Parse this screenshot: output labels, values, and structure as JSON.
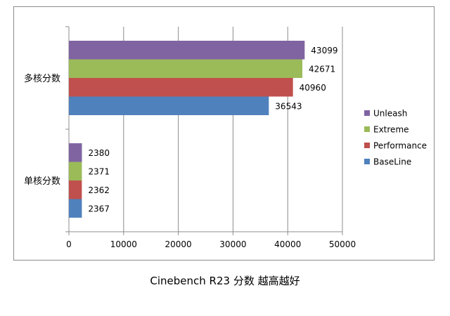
{
  "caption": "Cinebench R23  分数  越高越好",
  "chart_data": {
    "type": "bar",
    "orientation": "horizontal",
    "categories": [
      "多核分数",
      "单核分数"
    ],
    "series": [
      {
        "name": "Unleash",
        "color": "#8064A2",
        "values": [
          43099,
          2380
        ]
      },
      {
        "name": "Extreme",
        "color": "#9BBB59",
        "values": [
          42671,
          2371
        ]
      },
      {
        "name": "Performance",
        "color": "#C0504D",
        "values": [
          40960,
          2362
        ]
      },
      {
        "name": "BaseLine",
        "color": "#4F81BD",
        "values": [
          36543,
          2367
        ]
      }
    ],
    "xlim": [
      0,
      50000
    ],
    "xticks": [
      "0",
      "10000",
      "20000",
      "30000",
      "40000",
      "50000"
    ],
    "grid": "vertical",
    "legend": "right",
    "data_labels": true
  }
}
